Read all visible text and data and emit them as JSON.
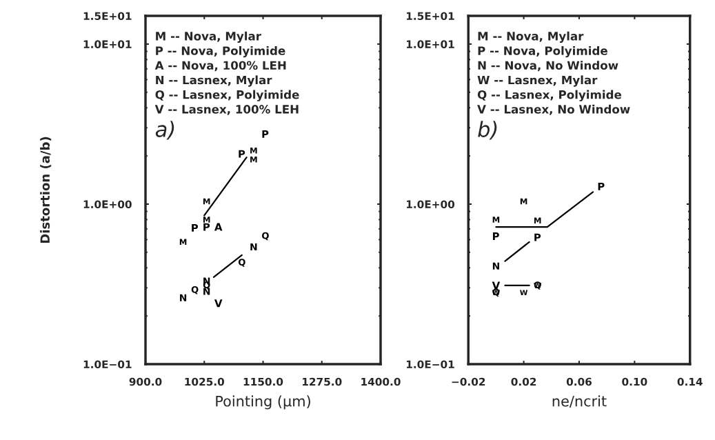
{
  "chart_data": [
    {
      "type": "scatter",
      "ylabel": "Distortion (a/b)",
      "xlabel": "Pointing (µm)",
      "annotations": [
        "M -- Nova, Mylar",
        "P -- Nova, Polyimide",
        "A -- Nova, 100% LEH",
        "N -- Lasnex, Mylar",
        "Q -- Lasnex, Polyimide",
        "V -- Lasnex, 100% LEH",
        "a)"
      ],
      "xlim": [
        900,
        1400
      ],
      "xticks": [
        {
          "value": 900,
          "label": "900.0"
        },
        {
          "value": 1025,
          "label": "1025.0"
        },
        {
          "value": 1150,
          "label": "1150.0"
        },
        {
          "value": 1275,
          "label": "1275.0"
        },
        {
          "value": 1400,
          "label": "1400.0"
        }
      ],
      "ylim": [
        0.1,
        15
      ],
      "yticks": [
        {
          "value": 0.1,
          "label": "1.0E−01"
        },
        {
          "value": 1,
          "label": "1.0E+00"
        },
        {
          "value": 10,
          "label": "1.0E+01"
        },
        {
          "value": 15,
          "label": "1.5E+01"
        }
      ],
      "log": "y",
      "grid": false,
      "series": [
        {
          "color": "#000000",
          "x": [
            1130,
            1130,
            1030,
            1030,
            980
          ],
          "values": [
            2.16,
            1.9,
            1.04,
            0.8,
            0.58
          ]
        },
        {
          "color": "#000000",
          "x": [
            1155,
            1105,
            1030,
            1005
          ],
          "values": [
            2.74,
            2.06,
            0.72,
            0.71
          ]
        },
        {
          "color": "#000000",
          "x": [
            1055
          ],
          "values": [
            0.72
          ]
        },
        {
          "color": "#000000",
          "x": [
            1130,
            1030,
            1030,
            980
          ],
          "values": [
            0.54,
            0.33,
            0.285,
            0.26
          ]
        },
        {
          "color": "#000000",
          "x": [
            1155,
            1105,
            1030,
            1005
          ],
          "values": [
            0.63,
            0.43,
            0.31,
            0.29
          ]
        },
        {
          "color": "#000000",
          "x": [
            1055
          ],
          "values": [
            0.24
          ]
        },
        {
          "type": "line",
          "color": "#000000",
          "x": [
            1025,
            1115
          ],
          "values": [
            0.85,
            1.96
          ]
        },
        {
          "type": "line",
          "color": "#000000",
          "x": [
            1045,
            1105
          ],
          "values": [
            0.35,
            0.48
          ]
        }
      ]
    },
    {
      "type": "scatter",
      "xlabel": "ne/ncrit",
      "annotations": [
        "M -- Nova, Mylar",
        "P -- Nova, Polyimide",
        "N -- Nova, No Window",
        "W -- Lasnex, Mylar",
        "Q -- Lasnex, Polyimide",
        "V -- Lasnex, No Window",
        "b)"
      ],
      "xlim": [
        -0.02,
        0.14
      ],
      "xticks": [
        {
          "value": -0.02,
          "label": "−0.02"
        },
        {
          "value": 0.02,
          "label": "0.02"
        },
        {
          "value": 0.06,
          "label": "0.06"
        },
        {
          "value": 0.1,
          "label": "0.10"
        },
        {
          "value": 0.14,
          "label": "0.14"
        }
      ],
      "ylim": [
        0.1,
        15
      ],
      "yticks": [
        {
          "value": 0.1,
          "label": "1.0E−01"
        },
        {
          "value": 1,
          "label": "1.0E+00"
        },
        {
          "value": 10,
          "label": "1.0E+01"
        },
        {
          "value": 15,
          "label": "1.5E+01"
        }
      ],
      "log": "y",
      "grid": false,
      "series": [
        {
          "color": "#000000",
          "x": [
            0.02,
            0.0,
            0.03
          ],
          "values": [
            1.04,
            0.8,
            0.79
          ]
        },
        {
          "color": "#000000",
          "x": [
            0.076,
            0.0,
            0.03
          ],
          "values": [
            1.29,
            0.63,
            0.62
          ]
        },
        {
          "color": "#000000",
          "x": [
            0.0
          ],
          "values": [
            0.41
          ]
        },
        {
          "color": "#000000",
          "x": [
            0.0,
            0.02,
            0.03
          ],
          "values": [
            0.28,
            0.28,
            0.31
          ]
        },
        {
          "color": "#000000",
          "x": [
            0.0,
            0.03
          ],
          "values": [
            0.28,
            0.31
          ]
        },
        {
          "color": "#000000",
          "x": [
            0.0
          ],
          "values": [
            0.31
          ]
        },
        {
          "type": "line",
          "color": "#000000",
          "x": [
            0.0,
            0.037,
            0.07
          ],
          "values": [
            0.72,
            0.72,
            1.19
          ]
        },
        {
          "type": "line",
          "color": "#000000",
          "x": [
            0.0065,
            0.024
          ],
          "values": [
            0.44,
            0.58
          ]
        },
        {
          "type": "line",
          "color": "#000000",
          "x": [
            0.0065,
            0.024
          ],
          "values": [
            0.31,
            0.31
          ]
        }
      ]
    }
  ]
}
